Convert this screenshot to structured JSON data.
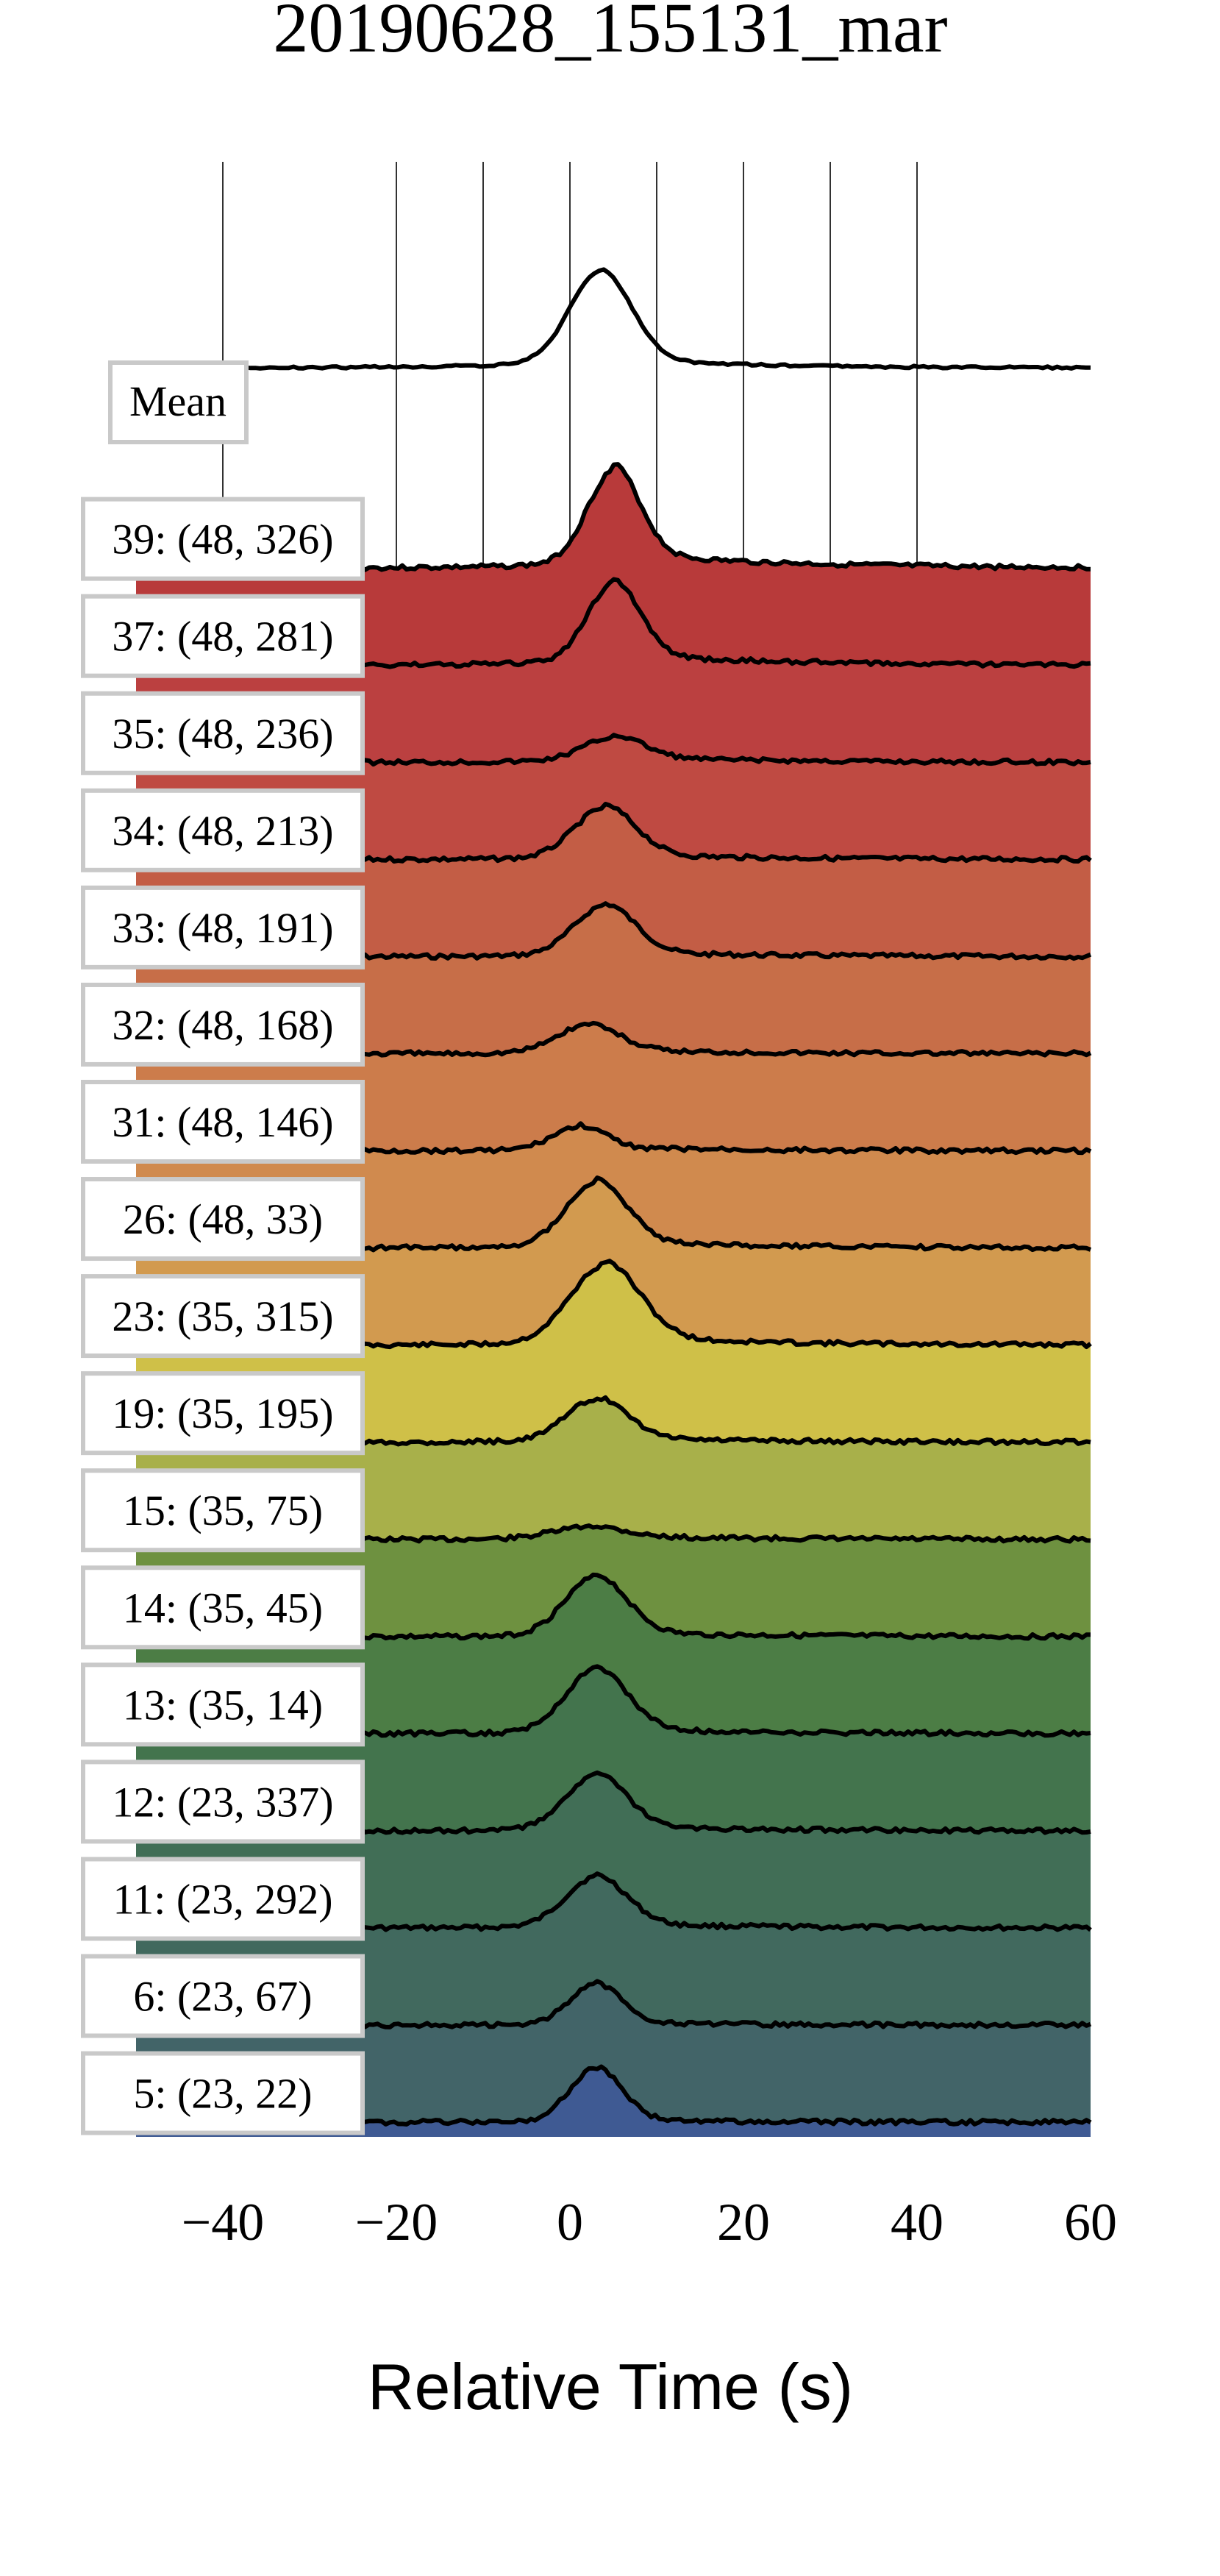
{
  "chart_data": {
    "type": "area",
    "title": "20190628_155131_mar",
    "xlabel": "Relative Time (s)",
    "ylabel": "",
    "xlim": [
      -50,
      60
    ],
    "xticks": [
      -40,
      -20,
      0,
      20,
      40,
      60
    ],
    "xtick_labels": [
      "−40",
      "−20",
      "0",
      "20",
      "40",
      "60"
    ],
    "gridlines_x": [
      -40,
      -20,
      -10,
      0,
      10,
      20,
      30,
      40
    ],
    "grid": true,
    "mean_label": "Mean",
    "series": [
      {
        "name": "39: (48, 326)",
        "color": "#b83a3a",
        "peak_x": 5,
        "peak": 1.0,
        "width": 3.0,
        "tail": 0.35
      },
      {
        "name": "37: (48, 281)",
        "color": "#bb4040",
        "peak_x": 5,
        "peak": 0.85,
        "width": 3.0,
        "tail": 0.25
      },
      {
        "name": "35: (48, 236)",
        "color": "#bf4a42",
        "peak_x": 5,
        "peak": 0.25,
        "width": 3.5,
        "tail": 0.12
      },
      {
        "name": "34: (48, 213)",
        "color": "#c35d45",
        "peak_x": 4,
        "peak": 0.55,
        "width": 3.5,
        "tail": 0.12
      },
      {
        "name": "33: (48, 191)",
        "color": "#c76e48",
        "peak_x": 4,
        "peak": 0.55,
        "width": 3.5,
        "tail": 0.1
      },
      {
        "name": "32: (48, 168)",
        "color": "#cc7c4b",
        "peak_x": 2,
        "peak": 0.3,
        "width": 3.5,
        "tail": 0.1
      },
      {
        "name": "31: (48, 146)",
        "color": "#d08a4e",
        "peak_x": 1,
        "peak": 0.25,
        "width": 3.0,
        "tail": 0.08
      },
      {
        "name": "26: (48, 33)",
        "color": "#d29a4f",
        "peak_x": 3,
        "peak": 0.7,
        "width": 3.5,
        "tail": 0.15
      },
      {
        "name": "23: (35, 315)",
        "color": "#cfc048",
        "peak_x": 4,
        "peak": 0.85,
        "width": 4.0,
        "tail": 0.2
      },
      {
        "name": "19: (35, 195)",
        "color": "#a8b04a",
        "peak_x": 3,
        "peak": 0.45,
        "width": 3.5,
        "tail": 0.12
      },
      {
        "name": "15: (35, 75)",
        "color": "#6e9140",
        "peak_x": 2,
        "peak": 0.12,
        "width": 4.0,
        "tail": 0.08
      },
      {
        "name": "14: (35, 45)",
        "color": "#4c7d45",
        "peak_x": 3,
        "peak": 0.65,
        "width": 3.5,
        "tail": 0.1
      },
      {
        "name": "13: (35, 14)",
        "color": "#43744d",
        "peak_x": 3,
        "peak": 0.7,
        "width": 3.5,
        "tail": 0.12
      },
      {
        "name": "12: (23, 337)",
        "color": "#416e56",
        "peak_x": 3,
        "peak": 0.6,
        "width": 3.5,
        "tail": 0.1
      },
      {
        "name": "11: (23, 292)",
        "color": "#41695e",
        "peak_x": 3,
        "peak": 0.55,
        "width": 3.5,
        "tail": 0.1
      },
      {
        "name": "6: (23, 67)",
        "color": "#426468",
        "peak_x": 3,
        "peak": 0.45,
        "width": 3.0,
        "tail": 0.05
      },
      {
        "name": "5: (23, 22)",
        "color": "#3f5a93",
        "peak_x": 3,
        "peak": 0.6,
        "width": 3.0,
        "tail": 0.05
      }
    ]
  }
}
